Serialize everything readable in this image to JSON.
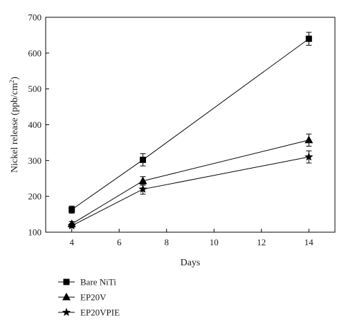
{
  "chart_data": {
    "type": "line",
    "xlabel": "Days",
    "ylabel": "Nickel release (ppb/cm²)",
    "ylabel_main": "Nickel release (ppb/cm",
    "ylabel_sup": "2",
    "ylabel_close": ")",
    "xlim": [
      2.9,
      15.1
    ],
    "ylim": [
      100,
      700
    ],
    "xticks": [
      4,
      6,
      8,
      10,
      12,
      14
    ],
    "yticks": [
      100,
      200,
      300,
      400,
      500,
      600,
      700
    ],
    "x": [
      4,
      7,
      14
    ],
    "grid": false,
    "legend_position": "below",
    "series": [
      {
        "name": "Bare NiTi",
        "marker": "square",
        "values": [
          163,
          302,
          640
        ],
        "errors": [
          10,
          17,
          18
        ]
      },
      {
        "name": "EP20V",
        "marker": "triangle",
        "values": [
          123,
          243,
          357
        ],
        "errors": [
          7,
          12,
          17
        ]
      },
      {
        "name": "EP20VPIE",
        "marker": "star",
        "values": [
          118,
          220,
          310
        ],
        "errors": [
          6,
          14,
          17
        ]
      }
    ]
  }
}
